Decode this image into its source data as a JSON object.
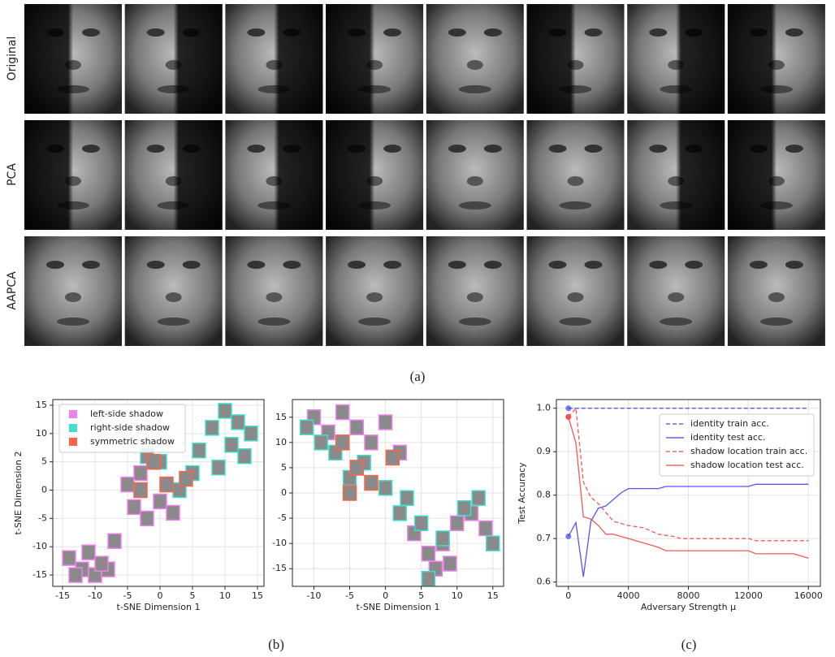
{
  "row_labels": [
    "Original",
    "PCA",
    "AAPCA"
  ],
  "panel_labels": [
    "(a)",
    "(b)",
    "(c)"
  ],
  "chart_data": [
    {
      "type": "scatter",
      "xlabel": "t-SNE Dimension 1",
      "ylabel": "t-SNE Dimension 2",
      "xlim": [
        -16.5,
        16
      ],
      "ylim": [
        -17,
        16
      ],
      "xticks": [
        -15,
        -10,
        -5,
        0,
        5,
        10,
        15
      ],
      "yticks": [
        -15,
        -10,
        -5,
        0,
        5,
        10,
        15
      ],
      "grid": true,
      "legend": "upper left",
      "series": [
        {
          "name": "left-side shadow",
          "color": "#ee82ee",
          "x": [
            -14,
            -12,
            -10,
            -8,
            -11,
            -7,
            -9,
            -13,
            -4,
            -2,
            -5,
            0,
            -3,
            2
          ],
          "values": [
            -12,
            -14,
            -15,
            -14,
            -11,
            -9,
            -13,
            -15,
            -3,
            -5,
            1,
            -2,
            3,
            -4
          ]
        },
        {
          "name": "right-side shadow",
          "color": "#40e0d0",
          "x": [
            10,
            12,
            14,
            8,
            11,
            13,
            6,
            9,
            5,
            3,
            -2,
            0
          ],
          "values": [
            14,
            12,
            10,
            11,
            8,
            6,
            7,
            4,
            3,
            0,
            6,
            5
          ]
        },
        {
          "name": "symmetric shadow",
          "color": "#ff6347",
          "x": [
            -3,
            1,
            4,
            -1
          ],
          "values": [
            0,
            1,
            2,
            5
          ]
        }
      ]
    },
    {
      "type": "scatter",
      "xlabel": "t-SNE Dimension 1",
      "xlim": [
        -13,
        16.5
      ],
      "ylim": [
        -18.5,
        18.5
      ],
      "xticks": [
        -10,
        -5,
        0,
        5,
        10,
        15
      ],
      "yticks": [
        -15,
        -10,
        -5,
        0,
        5,
        10,
        15
      ],
      "grid": true,
      "series": [
        {
          "color": "#ee82ee",
          "x": [
            -10,
            -8,
            -6,
            -4,
            -2,
            0,
            2,
            4,
            6,
            8,
            10,
            12,
            14,
            7,
            9
          ],
          "values": [
            15,
            12,
            16,
            13,
            10,
            14,
            8,
            -8,
            -12,
            -10,
            -6,
            -4,
            -7,
            -15,
            -14
          ]
        },
        {
          "color": "#40e0d0",
          "x": [
            -11,
            -9,
            -7,
            -5,
            -3,
            0,
            3,
            5,
            8,
            11,
            13,
            15,
            6,
            2
          ],
          "values": [
            13,
            10,
            8,
            3,
            6,
            1,
            -1,
            -6,
            -9,
            -3,
            -1,
            -10,
            -17,
            -4
          ]
        },
        {
          "color": "#ff6347",
          "x": [
            -6,
            -4,
            -2,
            -5,
            1
          ],
          "values": [
            10,
            5,
            2,
            0,
            7
          ]
        }
      ]
    },
    {
      "type": "line",
      "xlabel": "Adversary Strength μ",
      "ylabel": "Test Accuracy",
      "xlim": [
        -800,
        16800
      ],
      "ylim": [
        0.59,
        1.02
      ],
      "xticks": [
        0,
        4000,
        8000,
        12000,
        16000
      ],
      "yticks": [
        0.6,
        0.7,
        0.8,
        0.9,
        {
          "value": 1,
          "label": "1.0"
        }
      ],
      "grid": true,
      "legend": "upper right",
      "start_marker": true,
      "series": [
        {
          "name": "identity train acc.",
          "color": "#4444ee",
          "dash": true,
          "x": [
            0,
            16000
          ],
          "values": [
            1,
            1
          ]
        },
        {
          "name": "identity test acc.",
          "color": "#4444ee",
          "dash": false,
          "x": [
            0,
            500,
            1000,
            1500,
            2000,
            2500,
            3000,
            3500,
            4000,
            6000,
            6500,
            12000,
            12500,
            16000
          ],
          "values": [
            0.705,
            0.737,
            0.612,
            0.74,
            0.77,
            0.775,
            0.79,
            0.805,
            0.815,
            0.815,
            0.82,
            0.82,
            0.825,
            0.825
          ]
        },
        {
          "name": "shadow location train acc.",
          "color": "#f04848",
          "dash": true,
          "x": [
            0,
            500,
            1000,
            1500,
            2000,
            2500,
            3000,
            3500,
            4000,
            5000,
            6000,
            7000,
            7500,
            12000,
            12500,
            16000
          ],
          "values": [
            0.98,
            1,
            0.83,
            0.795,
            0.78,
            0.76,
            0.74,
            0.735,
            0.73,
            0.725,
            0.71,
            0.705,
            0.7,
            0.7,
            0.695,
            0.695
          ]
        },
        {
          "name": "shadow location test acc.",
          "color": "#f04848",
          "dash": false,
          "x": [
            0,
            500,
            1000,
            1500,
            2000,
            2500,
            3000,
            4000,
            5000,
            6000,
            6500,
            12000,
            12500,
            15000,
            15500,
            16000
          ],
          "values": [
            0.98,
            0.92,
            0.75,
            0.745,
            0.73,
            0.71,
            0.71,
            0.7,
            0.69,
            0.68,
            0.672,
            0.672,
            0.665,
            0.665,
            0.66,
            0.655
          ]
        }
      ]
    }
  ]
}
